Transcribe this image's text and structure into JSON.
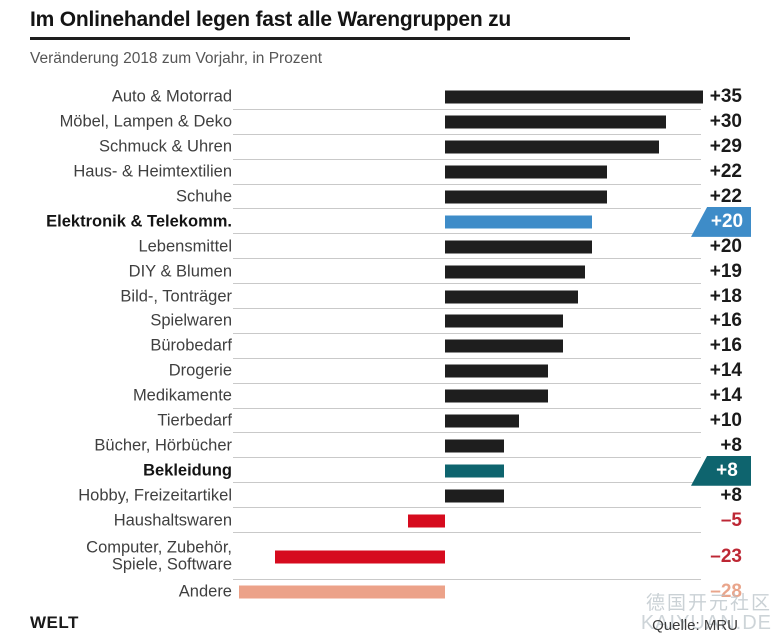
{
  "header": {
    "title": "Im Onlinehandel legen fast alle Warengruppen zu",
    "subtitle": "Veränderung 2018 zum Vorjahr, in Prozent"
  },
  "footer": {
    "logo": "WELT",
    "source": "Quelle: MRU",
    "watermark_line1": "德国开元社区",
    "watermark_line2": "KAIYUAN.DE"
  },
  "palette": {
    "bar_black": "#1e1e1e",
    "bar_blue": "#3e8cc8",
    "bar_teal": "#0e646e",
    "bar_red": "#d60b1e",
    "bar_salmon": "#eca289",
    "value_black": "#1a1a1a",
    "value_red": "#bd2734",
    "value_salmon": "#e9a58b",
    "separator": "#c9c9c9"
  },
  "chart_data": {
    "type": "bar",
    "orientation": "horizontal",
    "title": "Im Onlinehandel legen fast alle Warengruppen zu",
    "subtitle": "Veränderung 2018 zum Vorjahr, in Prozent",
    "unit": "Prozent",
    "xlim": [
      -28,
      35
    ],
    "grid": "row-separators",
    "legend": "none",
    "categories": [
      "Auto & Motorrad",
      "Möbel, Lampen & Deko",
      "Schmuck & Uhren",
      "Haus- & Heimtextilien",
      "Schuhe",
      "Elektronik & Telekomm.",
      "Lebensmittel",
      "DIY & Blumen",
      "Bild-, Tonträger",
      "Spielwaren",
      "Bürobedarf",
      "Drogerie",
      "Medikamente",
      "Tierbedarf",
      "Bücher, Hörbücher",
      "Bekleidung",
      "Hobby, Freizeitartikel",
      "Haushaltswaren",
      "Computer, Zubehör, Spiele, Software",
      "Andere"
    ],
    "values": [
      35,
      30,
      29,
      22,
      22,
      20,
      20,
      19,
      18,
      16,
      16,
      14,
      14,
      10,
      8,
      8,
      8,
      -5,
      -23,
      -28
    ],
    "rows": [
      {
        "label": "Auto & Motorrad",
        "value": 35,
        "display": "+35",
        "bar": "bar_black",
        "value_color": "value_black",
        "bold": false,
        "tag": false
      },
      {
        "label": "Möbel, Lampen & Deko",
        "value": 30,
        "display": "+30",
        "bar": "bar_black",
        "value_color": "value_black",
        "bold": false,
        "tag": false
      },
      {
        "label": "Schmuck & Uhren",
        "value": 29,
        "display": "+29",
        "bar": "bar_black",
        "value_color": "value_black",
        "bold": false,
        "tag": false
      },
      {
        "label": "Haus- & Heimtextilien",
        "value": 22,
        "display": "+22",
        "bar": "bar_black",
        "value_color": "value_black",
        "bold": false,
        "tag": false
      },
      {
        "label": "Schuhe",
        "value": 22,
        "display": "+22",
        "bar": "bar_black",
        "value_color": "value_black",
        "bold": false,
        "tag": false
      },
      {
        "label": "Elektronik & Telekomm.",
        "value": 20,
        "display": "+20",
        "bar": "bar_blue",
        "value_color": "value_black",
        "bold": true,
        "tag": true
      },
      {
        "label": "Lebensmittel",
        "value": 20,
        "display": "+20",
        "bar": "bar_black",
        "value_color": "value_black",
        "bold": false,
        "tag": false
      },
      {
        "label": "DIY & Blumen",
        "value": 19,
        "display": "+19",
        "bar": "bar_black",
        "value_color": "value_black",
        "bold": false,
        "tag": false
      },
      {
        "label": "Bild-, Tonträger",
        "value": 18,
        "display": "+18",
        "bar": "bar_black",
        "value_color": "value_black",
        "bold": false,
        "tag": false
      },
      {
        "label": "Spielwaren",
        "value": 16,
        "display": "+16",
        "bar": "bar_black",
        "value_color": "value_black",
        "bold": false,
        "tag": false
      },
      {
        "label": "Bürobedarf",
        "value": 16,
        "display": "+16",
        "bar": "bar_black",
        "value_color": "value_black",
        "bold": false,
        "tag": false
      },
      {
        "label": "Drogerie",
        "value": 14,
        "display": "+14",
        "bar": "bar_black",
        "value_color": "value_black",
        "bold": false,
        "tag": false
      },
      {
        "label": "Medikamente",
        "value": 14,
        "display": "+14",
        "bar": "bar_black",
        "value_color": "value_black",
        "bold": false,
        "tag": false
      },
      {
        "label": "Tierbedarf",
        "value": 10,
        "display": "+10",
        "bar": "bar_black",
        "value_color": "value_black",
        "bold": false,
        "tag": false
      },
      {
        "label": "Bücher, Hörbücher",
        "value": 8,
        "display": "+8",
        "bar": "bar_black",
        "value_color": "value_black",
        "bold": false,
        "tag": false
      },
      {
        "label": "Bekleidung",
        "value": 8,
        "display": "+8",
        "bar": "bar_teal",
        "value_color": "value_black",
        "bold": true,
        "tag": true
      },
      {
        "label": "Hobby, Freizeitartikel",
        "value": 8,
        "display": "+8",
        "bar": "bar_black",
        "value_color": "value_black",
        "bold": false,
        "tag": false
      },
      {
        "label": "Haushaltswaren",
        "value": -5,
        "display": "–5",
        "bar": "bar_red",
        "value_color": "value_red",
        "bold": false,
        "tag": false
      },
      {
        "label": "Computer, Zubehör,",
        "label2": "Spiele, Software",
        "value": -23,
        "display": "–23",
        "bar": "bar_red",
        "value_color": "value_red",
        "bold": false,
        "tag": false
      },
      {
        "label": "Andere",
        "value": -28,
        "display": "–28",
        "bar": "bar_salmon",
        "value_color": "value_salmon",
        "bold": false,
        "tag": false
      }
    ]
  }
}
